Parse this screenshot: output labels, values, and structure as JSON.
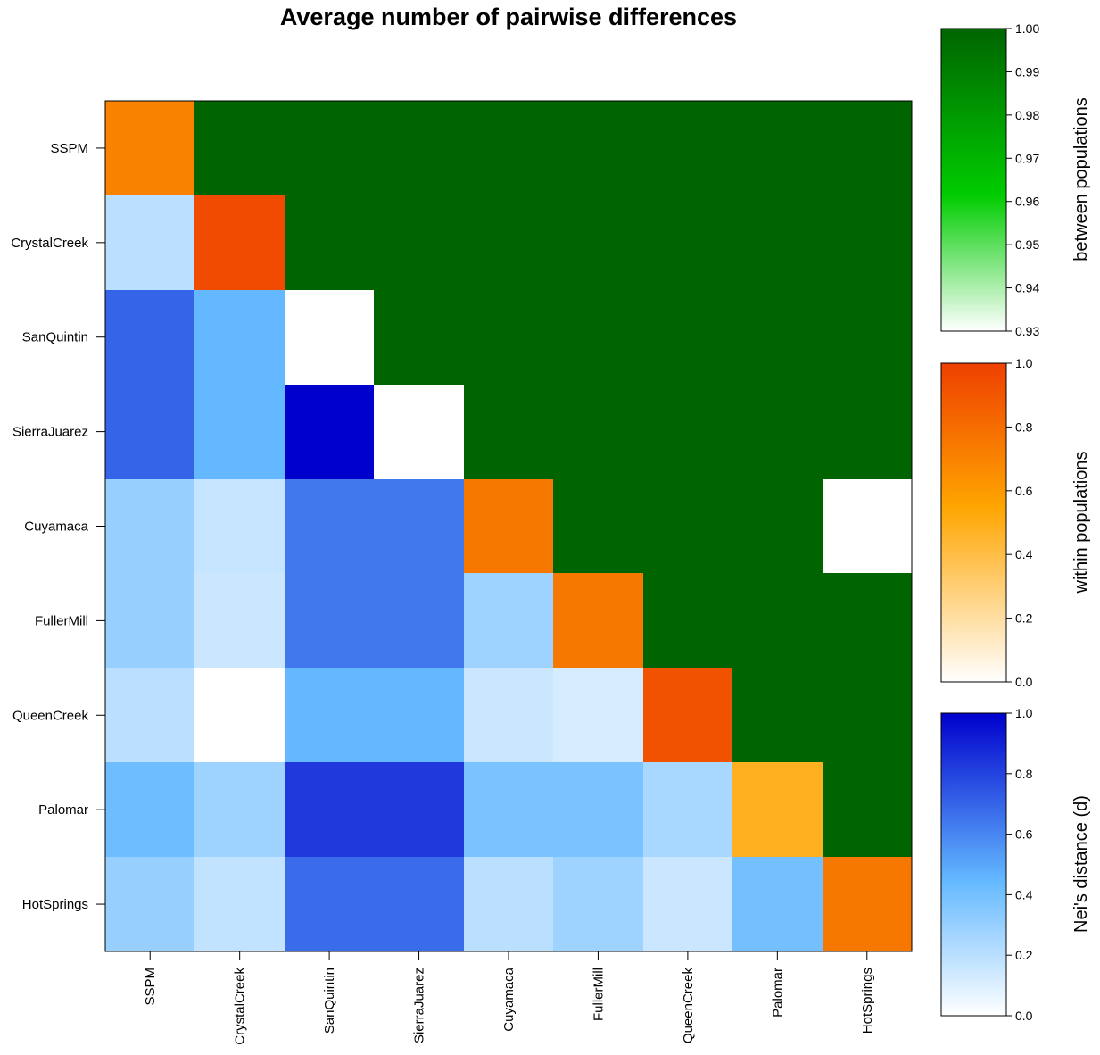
{
  "chart_data": {
    "type": "heatmap",
    "title": "Average number of pairwise differences",
    "populations": [
      "SSPM",
      "CrystalCreek",
      "SanQuintin",
      "SierraJuarez",
      "Cuyamaca",
      "FullerMill",
      "QueenCreek",
      "Palomar",
      "HotSprings"
    ],
    "below_diagonal": {
      "name": "Nei's distance (d)",
      "range": [
        0.0,
        1.0
      ],
      "ticks": [
        "0.0",
        "0.2",
        "0.4",
        "0.6",
        "0.8",
        "1.0"
      ],
      "values": [
        [],
        [
          0.2
        ],
        [
          0.7,
          0.45
        ],
        [
          0.7,
          0.45,
          1.0
        ],
        [
          0.3,
          0.17,
          0.64,
          0.64
        ],
        [
          0.3,
          0.15,
          0.64,
          0.64,
          0.28
        ],
        [
          0.2,
          0.0,
          0.45,
          0.45,
          0.15,
          0.12
        ],
        [
          0.42,
          0.28,
          0.83,
          0.83,
          0.38,
          0.38,
          0.25
        ],
        [
          0.3,
          0.18,
          0.68,
          0.68,
          0.2,
          0.28,
          0.15,
          0.4
        ]
      ]
    },
    "diagonal": {
      "name": "within populations",
      "range": [
        0.0,
        1.0
      ],
      "ticks": [
        "0.0",
        "0.2",
        "0.4",
        "0.6",
        "0.8",
        "1.0"
      ],
      "values": [
        0.7,
        0.95,
        null,
        null,
        0.75,
        0.75,
        0.92,
        0.48,
        0.75
      ]
    },
    "above_diagonal": {
      "name": "between populations",
      "range": [
        0.93,
        1.0
      ],
      "ticks": [
        "0.93",
        "0.94",
        "0.95",
        "0.96",
        "0.97",
        "0.98",
        "0.99",
        "1.00"
      ],
      "values": [
        [
          null,
          1.0,
          1.0,
          1.0,
          1.0,
          1.0,
          1.0,
          1.0,
          1.0
        ],
        [
          null,
          null,
          1.0,
          1.0,
          1.0,
          1.0,
          1.0,
          1.0,
          1.0
        ],
        [
          null,
          null,
          null,
          1.0,
          1.0,
          1.0,
          1.0,
          1.0,
          1.0
        ],
        [
          null,
          null,
          null,
          null,
          1.0,
          1.0,
          1.0,
          1.0,
          1.0
        ],
        [
          null,
          null,
          null,
          null,
          null,
          1.0,
          1.0,
          1.0,
          null
        ],
        [
          null,
          null,
          null,
          null,
          null,
          null,
          1.0,
          1.0,
          1.0
        ],
        [
          null,
          null,
          null,
          null,
          null,
          null,
          null,
          1.0,
          1.0
        ],
        [
          null,
          null,
          null,
          null,
          null,
          null,
          null,
          null,
          1.0
        ],
        [
          null,
          null,
          null,
          null,
          null,
          null,
          null,
          null,
          null
        ]
      ]
    },
    "colors": {
      "between_scale": [
        "#ffffff",
        "#00cc00",
        "#006400"
      ],
      "within_scale": [
        "#ffffff",
        "#ffa500",
        "#ee4000"
      ],
      "nei_scale": [
        "#ffffff",
        "#63b8ff",
        "#0000cd"
      ],
      "missing": "#ffffff"
    }
  }
}
